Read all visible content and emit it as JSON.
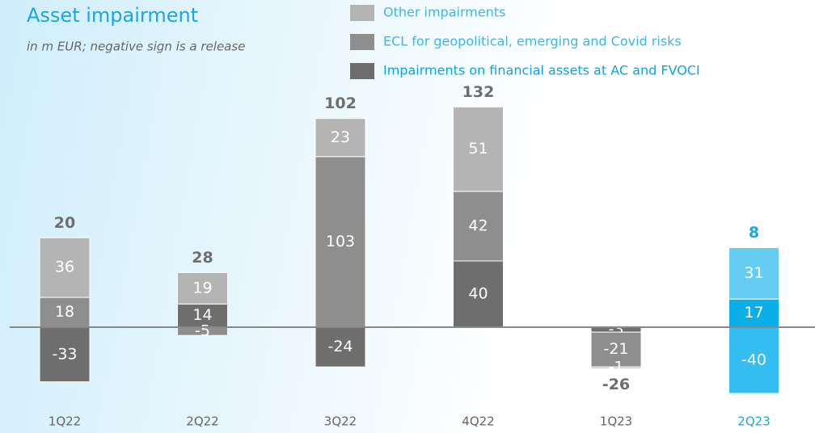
{
  "chart_data": {
    "type": "stacked_bar",
    "title": "Asset impairment",
    "subtitle": "in m EUR; negative sign is a release",
    "categories": [
      "1Q22",
      "2Q22",
      "3Q22",
      "4Q22",
      "1Q23",
      "2Q23"
    ],
    "series": [
      {
        "name": "Impairments on financial assets at AC and FVOCI",
        "color": "#6e6e6e",
        "highlight_color": "#33bdf0",
        "values": [
          -33,
          14,
          -24,
          40,
          -3,
          -40
        ]
      },
      {
        "name": "ECL for geopolitical, emerging and Covid risks",
        "color": "#8e8e8e",
        "highlight_color": "#0aaee8",
        "values": [
          18,
          -5,
          103,
          42,
          -21,
          17
        ]
      },
      {
        "name": "Other impairments",
        "color": "#b4b4b4",
        "highlight_color": "#66cdf2",
        "values": [
          36,
          19,
          23,
          51,
          -1,
          31
        ]
      }
    ],
    "totals": [
      20,
      28,
      102,
      132,
      -26,
      8
    ],
    "highlight": "2Q23",
    "ylim": [
      -50,
      150
    ]
  }
}
